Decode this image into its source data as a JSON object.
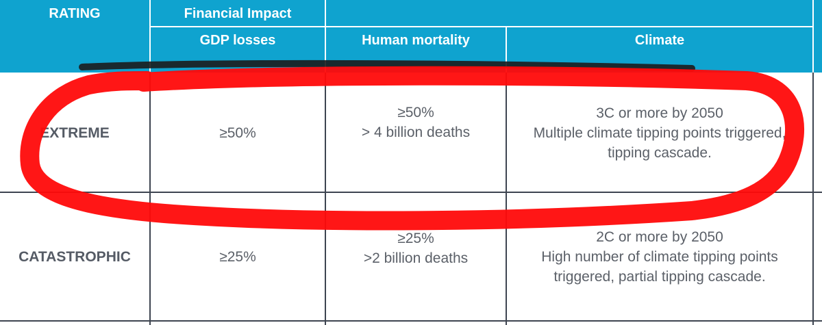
{
  "header": {
    "rating_label": "RATING",
    "financial_impact_label": "Financial Impact",
    "columns": {
      "gdp": "GDP losses",
      "mortality": "Human mortality",
      "climate": "Climate"
    }
  },
  "rows": [
    {
      "rating": "EXTREME",
      "gdp": "≥50%",
      "mortality": [
        "≥50%",
        "> 4 billion deaths"
      ],
      "climate": [
        "3C or more by 2050",
        "Multiple climate tipping points triggered,",
        "tipping cascade."
      ]
    },
    {
      "rating": "CATASTROPHIC",
      "gdp": "≥25%",
      "mortality": [
        "≥25%",
        ">2 billion deaths"
      ],
      "climate": [
        "2C or more by 2050",
        "High number of climate tipping points",
        "triggered, partial tipping cascade."
      ]
    }
  ],
  "colors": {
    "header_bg": "#0fa3cf",
    "grid_line": "#3d4450",
    "highlight_marker": "#ff0000"
  }
}
